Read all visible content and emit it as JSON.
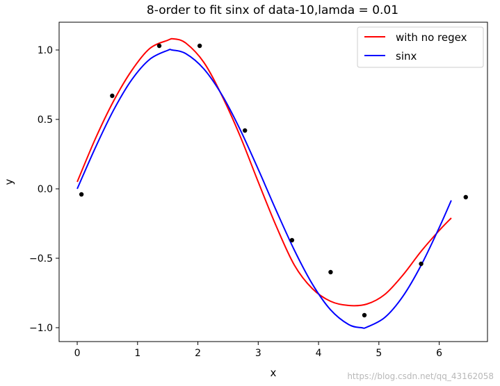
{
  "chart_data": {
    "type": "line",
    "title": "8-order to fit sinx of data-10,lamda = 0.01",
    "xlabel": "x",
    "ylabel": "y",
    "xlim": [
      -0.3,
      6.8
    ],
    "ylim": [
      -1.1,
      1.2
    ],
    "xticks": [
      0,
      1,
      2,
      3,
      4,
      5,
      6
    ],
    "xtick_labels": [
      "0",
      "1",
      "2",
      "3",
      "4",
      "5",
      "6"
    ],
    "yticks": [
      -1.0,
      -0.5,
      0.0,
      0.5,
      1.0
    ],
    "ytick_labels": [
      "−1.0",
      "−0.5",
      "0.0",
      "0.5",
      "1.0"
    ],
    "grid": false,
    "legend_position": "upper right",
    "series": [
      {
        "name": "with no regex",
        "color": "#ff0000",
        "x": [
          0.0,
          0.3,
          0.6,
          0.9,
          1.2,
          1.5,
          1.6,
          1.8,
          2.1,
          2.4,
          2.7,
          3.0,
          3.3,
          3.6,
          3.9,
          4.2,
          4.5,
          4.8,
          5.1,
          5.4,
          5.7,
          6.0,
          6.2
        ],
        "y": [
          0.05,
          0.36,
          0.63,
          0.85,
          1.01,
          1.07,
          1.08,
          1.05,
          0.91,
          0.67,
          0.38,
          0.05,
          -0.27,
          -0.55,
          -0.72,
          -0.81,
          -0.84,
          -0.83,
          -0.76,
          -0.62,
          -0.45,
          -0.3,
          -0.21
        ]
      },
      {
        "name": "sinx",
        "color": "#0000ff",
        "x": [
          0.0,
          0.3,
          0.6,
          0.9,
          1.2,
          1.5,
          1.5708,
          1.8,
          2.1,
          2.4,
          2.7,
          3.0,
          3.1416,
          3.3,
          3.6,
          3.9,
          4.2,
          4.5,
          4.7124,
          4.8,
          5.1,
          5.4,
          5.7,
          6.0,
          6.2
        ],
        "y": [
          0.0,
          0.2955,
          0.5646,
          0.7833,
          0.932,
          0.9975,
          1.0,
          0.9738,
          0.8632,
          0.6755,
          0.4274,
          0.1411,
          0.0,
          -0.1577,
          -0.4425,
          -0.6878,
          -0.8716,
          -0.9775,
          -1.0,
          -0.9962,
          -0.9258,
          -0.7728,
          -0.5507,
          -0.2794,
          -0.0831
        ]
      }
    ],
    "points": {
      "color": "#000000",
      "x": [
        0.07,
        0.58,
        1.36,
        2.03,
        2.78,
        3.56,
        4.2,
        4.76,
        5.7,
        6.44
      ],
      "y": [
        -0.04,
        0.67,
        1.03,
        1.03,
        0.42,
        -0.37,
        -0.6,
        -0.91,
        -0.54,
        -0.06
      ]
    }
  },
  "watermark": "https://blog.csdn.net/qq_43162058"
}
